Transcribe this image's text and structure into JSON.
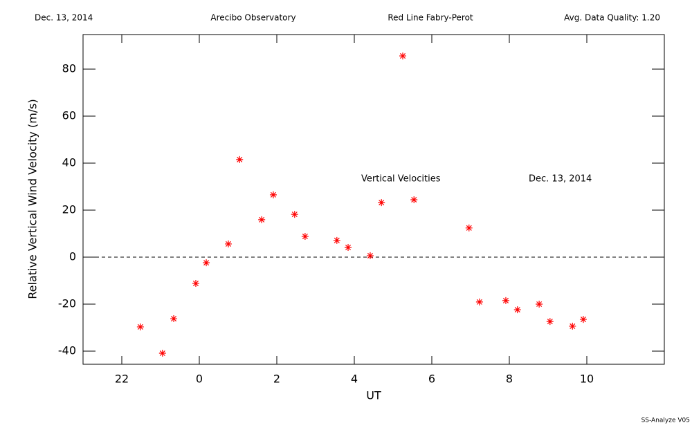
{
  "chart_data": {
    "type": "scatter",
    "header": [
      "Dec. 13, 2014",
      "Arecibo Observatory",
      "Red Line Fabry-Perot",
      "Avg. Data Quality: 1.20"
    ],
    "xlabel": "UT",
    "ylabel": "Relative Vertical Wind Velocity (m/s)",
    "annotations": [
      "Vertical Velocities",
      "Dec. 13, 2014"
    ],
    "footer": "SS-Analyze V05",
    "xlim": [
      -3,
      12
    ],
    "ylim": [
      -45.6,
      94.7
    ],
    "xticks": [
      {
        "value": -2,
        "label": "22"
      },
      0,
      2,
      4,
      6,
      8,
      10
    ],
    "yticks": [
      -40,
      -20,
      0,
      20,
      40,
      60,
      80
    ],
    "reference_line": 0,
    "color": "#ff0000",
    "x": [
      -1.52,
      -0.95,
      -0.66,
      -0.09,
      0.18,
      0.75,
      1.04,
      1.61,
      1.91,
      2.46,
      2.73,
      3.55,
      3.84,
      4.41,
      4.7,
      5.25,
      5.54,
      6.96,
      7.23,
      7.91,
      8.21,
      8.77,
      9.05,
      9.63,
      9.91
    ],
    "values": [
      -29.7,
      -40.9,
      -26.2,
      -11.2,
      -2.4,
      5.6,
      41.5,
      15.9,
      26.5,
      18.2,
      8.8,
      7.1,
      4.1,
      0.6,
      23.2,
      85.6,
      24.4,
      12.4,
      -19.1,
      -18.5,
      -22.4,
      -20.0,
      -27.4,
      -29.4,
      -26.5
    ]
  }
}
